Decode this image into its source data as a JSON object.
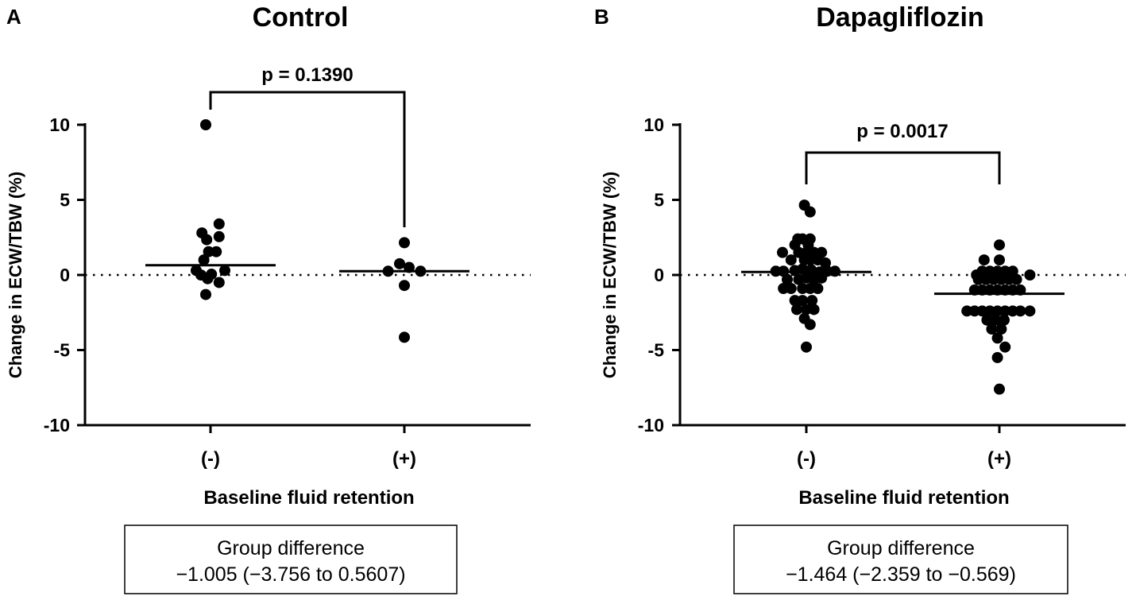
{
  "chart_data": [
    {
      "panel_label": "A",
      "type": "scatter",
      "title": "Control",
      "ylabel": "Change in ECW/TBW (%)",
      "xlabel": "Baseline fluid retention",
      "categories": [
        "(-)",
        "(+)"
      ],
      "ylim": [
        -10,
        10
      ],
      "yticks": [
        "10",
        "5",
        "0",
        "-5",
        "-10"
      ],
      "y_tick_values": [
        10,
        5,
        0,
        -5,
        -10
      ],
      "reference_line": 0,
      "p_value": "p = 0.1390",
      "group_difference_title": "Group difference",
      "group_difference_value": "−1.005 (−3.756 to 0.5607)",
      "series": [
        {
          "name": "(-)",
          "median": 0.65,
          "points": [
            [
              -0.5,
              10.0
            ],
            [
              -0.9,
              2.8
            ],
            [
              0.9,
              3.4
            ],
            [
              -0.4,
              2.35
            ],
            [
              0.9,
              2.55
            ],
            [
              -0.7,
              1.0
            ],
            [
              -0.2,
              1.55
            ],
            [
              0.6,
              1.55
            ],
            [
              -1.5,
              0.3
            ],
            [
              1.5,
              0.3
            ],
            [
              -1.0,
              0.0
            ],
            [
              0.1,
              0.05
            ],
            [
              -0.3,
              -0.25
            ],
            [
              0.9,
              -0.5
            ],
            [
              -0.5,
              -1.3
            ]
          ]
        },
        {
          "name": "(+)",
          "median": 0.25,
          "points": [
            [
              0.0,
              2.15
            ],
            [
              -0.5,
              0.75
            ],
            [
              -1.7,
              0.25
            ],
            [
              0.5,
              0.5
            ],
            [
              1.7,
              0.25
            ],
            [
              0.0,
              -0.7
            ],
            [
              0.0,
              -4.15
            ]
          ]
        }
      ]
    },
    {
      "panel_label": "B",
      "type": "scatter",
      "title": "Dapagliflozin",
      "ylabel": "Change in ECW/TBW (%)",
      "xlabel": "Baseline fluid retention",
      "categories": [
        "(-)",
        "(+)"
      ],
      "ylim": [
        -10,
        10
      ],
      "yticks": [
        "10",
        "5",
        "0",
        "-5",
        "-10"
      ],
      "y_tick_values": [
        10,
        5,
        0,
        -5,
        -10
      ],
      "reference_line": 0,
      "p_value": "p = 0.0017",
      "group_difference_title": "Group difference",
      "group_difference_value": "−1.464 (−2.359 to −0.569)",
      "series": [
        {
          "name": "(-)",
          "median": 0.2,
          "points": [
            [
              -0.2,
              4.65
            ],
            [
              0.4,
              4.2
            ],
            [
              -0.9,
              2.4
            ],
            [
              -0.4,
              2.4
            ],
            [
              0.4,
              2.4
            ],
            [
              -1.2,
              2.0
            ],
            [
              0.2,
              2.0
            ],
            [
              -2.5,
              1.5
            ],
            [
              -0.8,
              1.5
            ],
            [
              0.0,
              1.5
            ],
            [
              0.8,
              1.5
            ],
            [
              1.6,
              1.5
            ],
            [
              -1.6,
              1.0
            ],
            [
              -0.2,
              1.0
            ],
            [
              0.4,
              1.0
            ],
            [
              1.2,
              1.0
            ],
            [
              2.0,
              0.8
            ],
            [
              -3.2,
              0.25
            ],
            [
              -2.4,
              0.25
            ],
            [
              -1.2,
              0.3
            ],
            [
              -0.4,
              0.4
            ],
            [
              0.5,
              0.35
            ],
            [
              1.4,
              0.2
            ],
            [
              2.2,
              0.25
            ],
            [
              3.0,
              0.25
            ],
            [
              -2.0,
              -0.3
            ],
            [
              -0.8,
              -0.3
            ],
            [
              0.0,
              -0.2
            ],
            [
              0.8,
              -0.3
            ],
            [
              1.6,
              -0.2
            ],
            [
              -2.4,
              -0.9
            ],
            [
              -1.6,
              -0.9
            ],
            [
              -0.4,
              -0.9
            ],
            [
              0.4,
              -0.9
            ],
            [
              1.2,
              -0.9
            ],
            [
              -1.2,
              -1.7
            ],
            [
              -0.4,
              -1.7
            ],
            [
              0.6,
              -1.7
            ],
            [
              -1.0,
              -2.3
            ],
            [
              0.0,
              -2.3
            ],
            [
              0.8,
              -2.3
            ],
            [
              -0.2,
              -2.9
            ],
            [
              0.4,
              -3.3
            ],
            [
              0.0,
              -4.8
            ]
          ]
        },
        {
          "name": "(+)",
          "median": -1.25,
          "points": [
            [
              0.0,
              2.0
            ],
            [
              -1.6,
              1.0
            ],
            [
              0.0,
              1.0
            ],
            [
              -1.8,
              0.25
            ],
            [
              -1.0,
              0.25
            ],
            [
              -0.2,
              0.25
            ],
            [
              0.6,
              0.25
            ],
            [
              1.4,
              0.25
            ],
            [
              -2.4,
              0.0
            ],
            [
              3.2,
              0.0
            ],
            [
              -2.2,
              -0.3
            ],
            [
              -1.4,
              -0.3
            ],
            [
              -0.6,
              -0.3
            ],
            [
              0.2,
              -0.3
            ],
            [
              1.0,
              -0.3
            ],
            [
              1.8,
              -0.3
            ],
            [
              -2.6,
              -1.0
            ],
            [
              -1.8,
              -1.0
            ],
            [
              -1.0,
              -1.0
            ],
            [
              -0.2,
              -1.0
            ],
            [
              0.6,
              -1.0
            ],
            [
              1.4,
              -1.0
            ],
            [
              2.2,
              -1.0
            ],
            [
              -3.4,
              -2.4
            ],
            [
              -2.6,
              -2.4
            ],
            [
              -1.8,
              -2.4
            ],
            [
              -1.0,
              -2.4
            ],
            [
              -0.2,
              -2.4
            ],
            [
              0.6,
              -2.4
            ],
            [
              1.4,
              -2.4
            ],
            [
              2.2,
              -2.4
            ],
            [
              3.2,
              -2.4
            ],
            [
              -1.3,
              -3.0
            ],
            [
              -0.4,
              -3.0
            ],
            [
              0.5,
              -3.0
            ],
            [
              -0.8,
              -3.6
            ],
            [
              0.2,
              -3.6
            ],
            [
              -0.2,
              -4.2
            ],
            [
              0.6,
              -4.8
            ],
            [
              -0.2,
              -5.5
            ],
            [
              0.0,
              -7.6
            ]
          ]
        }
      ]
    }
  ]
}
